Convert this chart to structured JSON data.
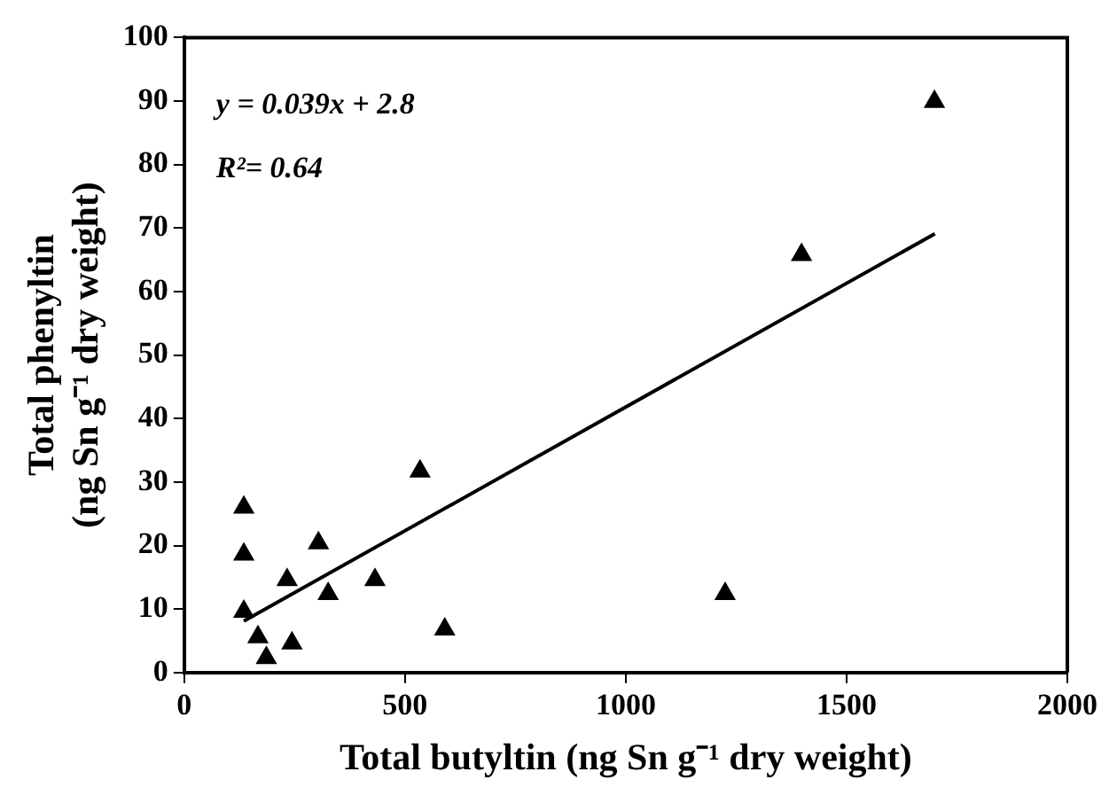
{
  "chart_data": {
    "type": "scatter",
    "xlabel": "Total butyltin (ng Sn g⁻¹ dry weight)",
    "ylabel": "Total phenyltin\n(ng Sn g⁻¹ dry weight)",
    "annotations": [
      "y = 0.039x + 2.8",
      "R²= 0.64"
    ],
    "xlim": [
      0,
      2000
    ],
    "xticks": [
      0,
      500,
      1000,
      1500,
      2000
    ],
    "ylim": [
      0,
      100
    ],
    "yticks": [
      0,
      10,
      20,
      30,
      40,
      50,
      60,
      70,
      80,
      90,
      100
    ],
    "grid": false,
    "legend": false,
    "marker": "triangle",
    "series": [
      {
        "color": "#000000",
        "x": [
          135,
          135,
          135,
          167,
          186,
          244,
          233,
          304,
          326,
          432,
          534,
          590,
          1225,
          1398,
          1699
        ],
        "values": [
          26,
          18.6,
          9.6,
          5.6,
          2.3,
          4.6,
          14.6,
          20.4,
          12.4,
          14.6,
          31.7,
          6.8,
          12.4,
          65.8,
          89.9
        ]
      },
      {
        "type": "line",
        "color": "#000000",
        "marker": "none",
        "x": [
          135,
          1700
        ],
        "values": [
          8.1,
          69.1
        ]
      }
    ]
  }
}
